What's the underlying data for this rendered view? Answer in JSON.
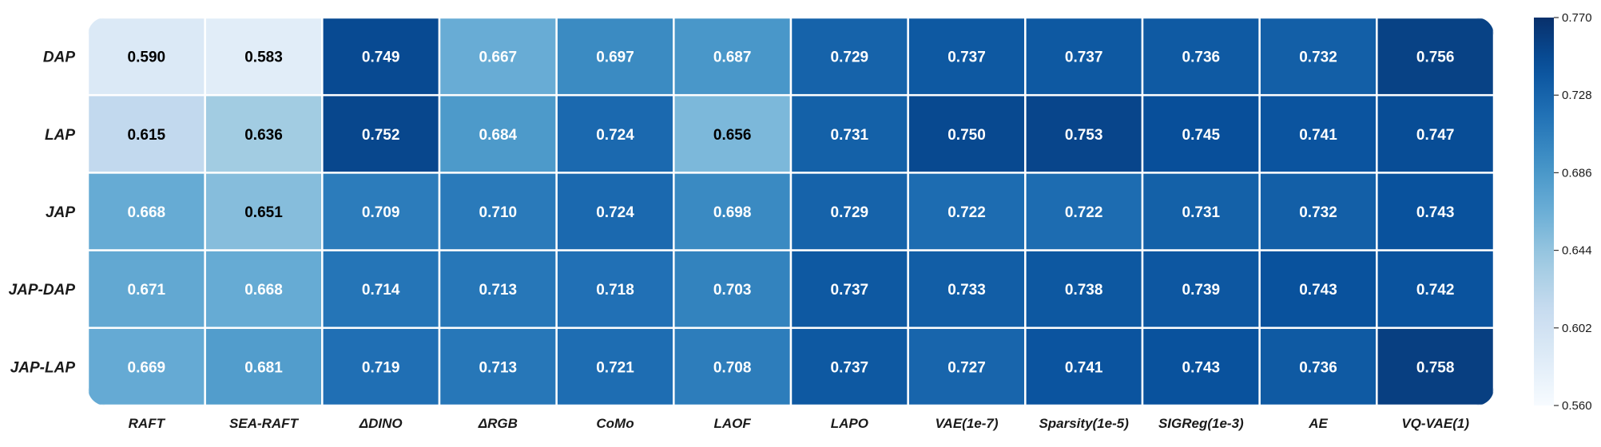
{
  "chart_data": {
    "type": "heatmap",
    "title": "",
    "xlabel": "",
    "ylabel": "",
    "rows": [
      "DAP",
      "LAP",
      "JAP",
      "JAP-DAP",
      "JAP-LAP"
    ],
    "columns": [
      "RAFT",
      "SEA-RAFT",
      "ΔDINO",
      "ΔRGB",
      "CoMo",
      "LAOF",
      "LAPO",
      "VAE(1e-7)",
      "Sparsity(1e-5)",
      "SIGReg(1e-3)",
      "AE",
      "VQ-VAE(1)"
    ],
    "values": [
      [
        0.59,
        0.583,
        0.749,
        0.667,
        0.697,
        0.687,
        0.729,
        0.737,
        0.737,
        0.736,
        0.732,
        0.756
      ],
      [
        0.615,
        0.636,
        0.752,
        0.684,
        0.724,
        0.656,
        0.731,
        0.75,
        0.753,
        0.745,
        0.741,
        0.747
      ],
      [
        0.668,
        0.651,
        0.709,
        0.71,
        0.724,
        0.698,
        0.729,
        0.722,
        0.722,
        0.731,
        0.732,
        0.743
      ],
      [
        0.671,
        0.668,
        0.714,
        0.713,
        0.718,
        0.703,
        0.737,
        0.733,
        0.738,
        0.739,
        0.743,
        0.742
      ],
      [
        0.669,
        0.681,
        0.719,
        0.713,
        0.721,
        0.708,
        0.737,
        0.727,
        0.741,
        0.743,
        0.736,
        0.758
      ]
    ],
    "value_format": "0.000",
    "colorscale": "Blues",
    "color_range": [
      0.56,
      0.77
    ],
    "colorbar_ticks": [
      0.56,
      0.602,
      0.644,
      0.686,
      0.728,
      0.77
    ],
    "colorbar_tick_labels": [
      "0.560",
      "0.602",
      "0.644",
      "0.686",
      "0.728",
      "0.770"
    ],
    "colorbar_position": "right",
    "grid": true,
    "grid_color": "#ffffff",
    "label_dark_color": "#000000",
    "label_light_color": "#ffffff"
  }
}
